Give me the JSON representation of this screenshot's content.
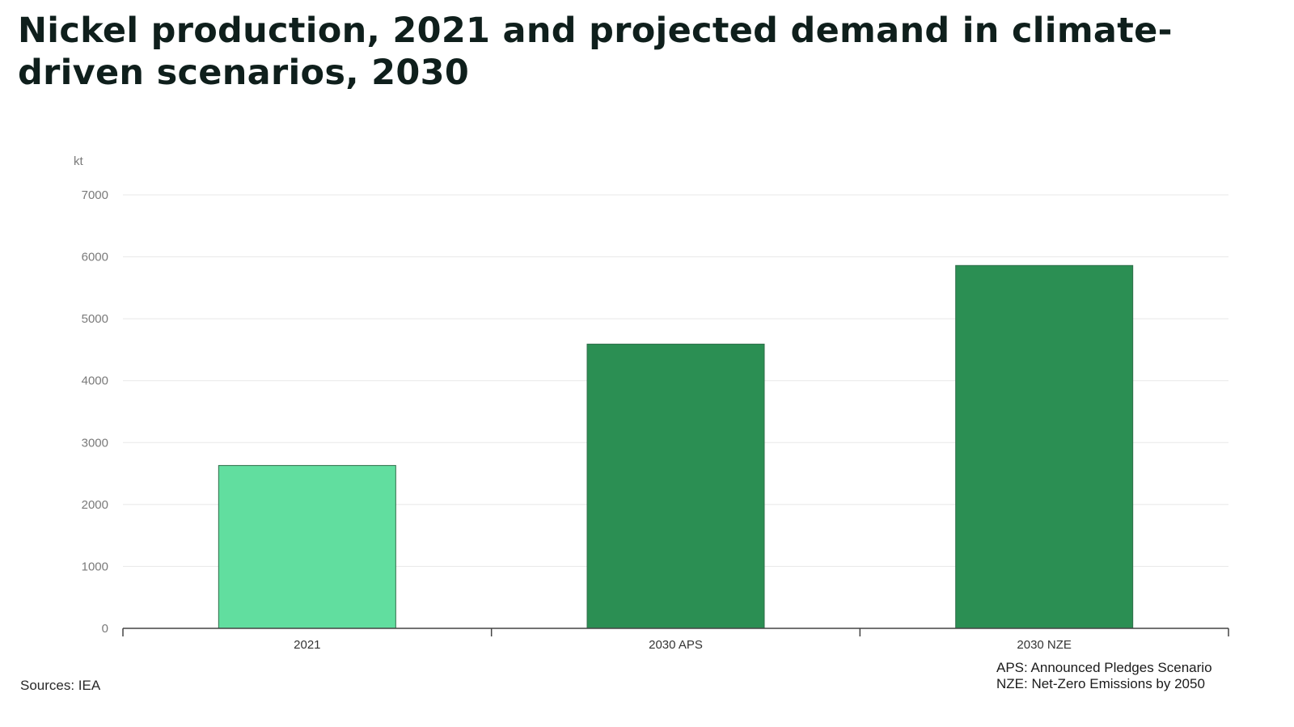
{
  "title": "Nickel production, 2021 and projected demand in climate-driven scenarios, 2030",
  "source": "Sources: IEA",
  "notes": [
    "APS: Announced Pledges Scenario",
    "NZE: Net-Zero Emissions by 2050"
  ],
  "colors": {
    "bar_2021": "#61de9f",
    "bar_2030": "#2b8f53",
    "grid": "#e8e8e8",
    "axis": "#444444"
  },
  "chart_data": {
    "type": "bar",
    "title": "Nickel production, 2021 and projected demand in climate-driven scenarios, 2030",
    "ylabel": "kt",
    "xlabel": "",
    "categories": [
      "2021",
      "2030 APS",
      "2030 NZE"
    ],
    "values": [
      2630,
      4590,
      5860
    ],
    "ylim": [
      0,
      7000
    ],
    "yticks": [
      0,
      1000,
      2000,
      3000,
      4000,
      5000,
      6000,
      7000
    ],
    "grid": true,
    "legend": "none"
  }
}
